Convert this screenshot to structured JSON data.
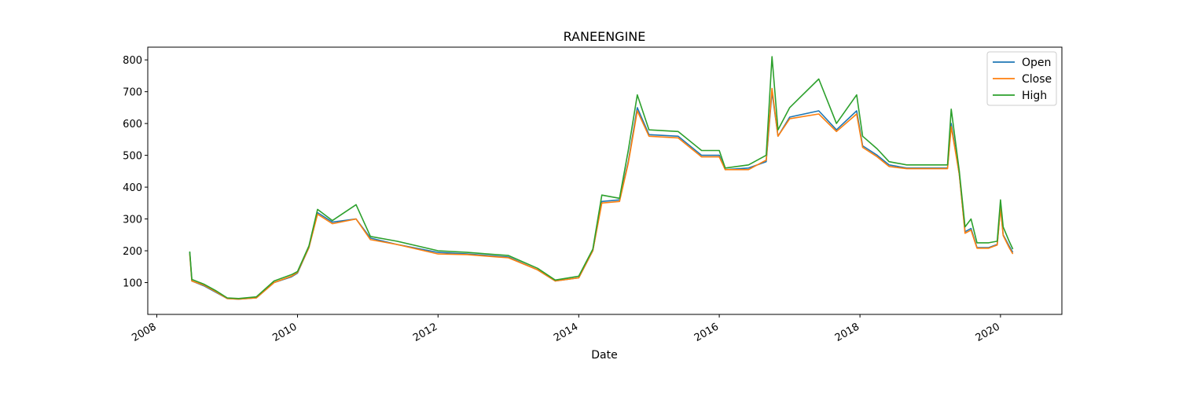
{
  "chart_data": {
    "type": "line",
    "title": "RANEENGINE",
    "xlabel": "Date",
    "ylabel": "",
    "xlim": [
      "2007-11-15",
      "2020-11-15"
    ],
    "ylim": [
      0,
      840
    ],
    "x_ticks": [
      "2008",
      "2010",
      "2012",
      "2014",
      "2016",
      "2018",
      "2020"
    ],
    "y_ticks": [
      100,
      200,
      300,
      400,
      500,
      600,
      700,
      800
    ],
    "legend_position": "top-right",
    "grid": false,
    "dates": [
      "2008-06-20",
      "2008-07-01",
      "2008-09-01",
      "2008-11-01",
      "2009-01-01",
      "2009-03-01",
      "2009-06-01",
      "2009-09-01",
      "2009-12-01",
      "2010-01-01",
      "2010-03-01",
      "2010-04-15",
      "2010-07-01",
      "2010-11-01",
      "2011-01-15",
      "2011-06-01",
      "2012-01-01",
      "2012-06-01",
      "2013-01-01",
      "2013-06-01",
      "2013-09-01",
      "2014-01-01",
      "2014-03-15",
      "2014-05-01",
      "2014-08-01",
      "2014-09-15",
      "2014-11-01",
      "2015-01-01",
      "2015-06-01",
      "2015-10-01",
      "2016-01-01",
      "2016-02-01",
      "2016-06-01",
      "2016-09-01",
      "2016-10-01",
      "2016-11-01",
      "2017-01-01",
      "2017-06-01",
      "2017-09-01",
      "2017-12-15",
      "2018-01-15",
      "2018-04-01",
      "2018-06-01",
      "2018-09-01",
      "2019-01-01",
      "2019-03-01",
      "2019-04-01",
      "2019-04-20",
      "2019-06-01",
      "2019-07-01",
      "2019-08-01",
      "2019-09-01",
      "2019-11-01",
      "2019-12-15",
      "2020-01-01",
      "2020-01-15",
      "2020-02-15",
      "2020-03-05"
    ],
    "series": [
      {
        "name": "Open",
        "color": "#1f77b4",
        "values": [
          195,
          105,
          90,
          70,
          50,
          48,
          52,
          100,
          118,
          130,
          210,
          320,
          290,
          300,
          240,
          220,
          195,
          190,
          180,
          140,
          105,
          115,
          200,
          355,
          360,
          480,
          650,
          565,
          560,
          500,
          500,
          455,
          460,
          480,
          700,
          560,
          620,
          640,
          580,
          640,
          530,
          500,
          470,
          460,
          460,
          460,
          460,
          600,
          440,
          260,
          270,
          210,
          210,
          220,
          340,
          250,
          215,
          195
        ]
      },
      {
        "name": "Close",
        "color": "#ff7f0e",
        "values": [
          190,
          105,
          92,
          72,
          50,
          48,
          52,
          100,
          120,
          132,
          210,
          315,
          285,
          300,
          235,
          220,
          190,
          188,
          178,
          140,
          105,
          115,
          200,
          350,
          355,
          475,
          640,
          560,
          555,
          495,
          495,
          455,
          455,
          485,
          710,
          560,
          615,
          630,
          575,
          630,
          525,
          495,
          465,
          458,
          458,
          458,
          458,
          590,
          440,
          255,
          265,
          208,
          208,
          218,
          335,
          248,
          210,
          190
        ]
      },
      {
        "name": "High",
        "color": "#2ca02c",
        "values": [
          198,
          110,
          95,
          75,
          52,
          50,
          55,
          105,
          125,
          135,
          215,
          330,
          295,
          345,
          245,
          230,
          200,
          195,
          185,
          145,
          108,
          120,
          205,
          375,
          365,
          515,
          690,
          580,
          575,
          515,
          515,
          460,
          470,
          500,
          810,
          580,
          650,
          740,
          600,
          690,
          560,
          520,
          480,
          470,
          470,
          470,
          470,
          645,
          450,
          275,
          300,
          225,
          225,
          230,
          360,
          275,
          230,
          205
        ]
      }
    ]
  }
}
